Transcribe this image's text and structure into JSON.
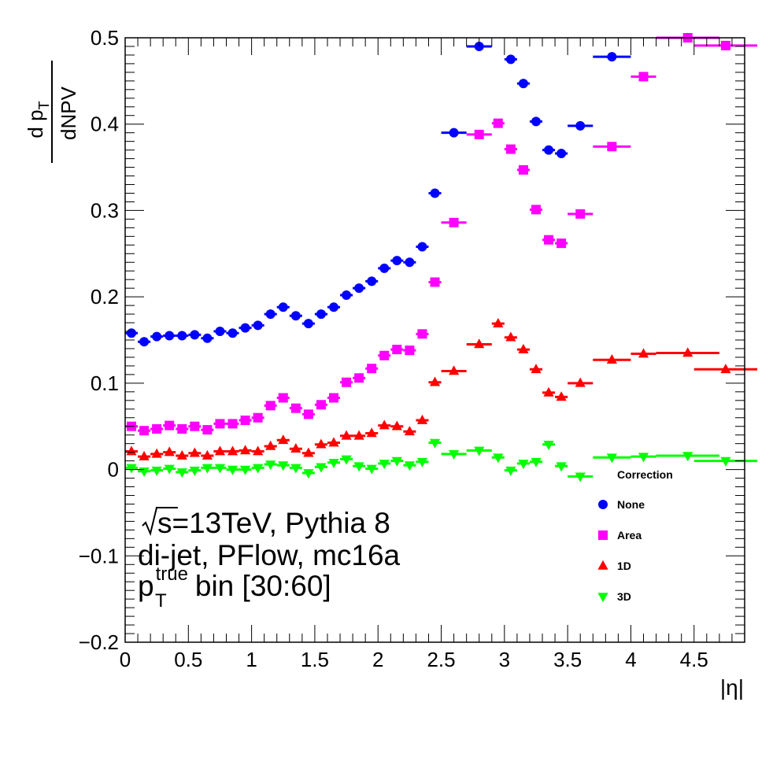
{
  "chart_data": {
    "type": "scatter",
    "xlabel": "|η|",
    "ylabel_num": "d p",
    "ylabel_num_sub": "T",
    "ylabel_den": "dNPV",
    "xlim": [
      0,
      4.9
    ],
    "ylim": [
      -0.2,
      0.5
    ],
    "xticks": [
      0,
      0.5,
      1,
      1.5,
      2,
      2.5,
      3,
      3.5,
      4,
      4.5
    ],
    "xtick_labels": [
      "0",
      "0.5",
      "1",
      "1.5",
      "2",
      "2.5",
      "3",
      "3.5",
      "4",
      "4.5"
    ],
    "yticks": [
      -0.2,
      -0.1,
      0,
      0.1,
      0.2,
      0.3,
      0.4,
      0.5
    ],
    "ytick_labels": [
      "−0.2",
      "−0.1",
      "0",
      "0.1",
      "0.2",
      "0.3",
      "0.4",
      "0.5"
    ],
    "grid": false,
    "legend": {
      "title": "Correction",
      "placement": "lower-right"
    },
    "annotations": {
      "line1_root_symbol": "√",
      "line1_rest": "s=13TeV, Pythia 8",
      "line2": "di-jet, PFlow, mc16a",
      "line3_p": "p",
      "line3_sup": "true",
      "line3_sub": "T",
      "line3_rest": " bin [30:60]"
    },
    "series": [
      {
        "name": "None",
        "color": "#0000ff",
        "marker": "circle",
        "points": [
          [
            0.05,
            0.158,
            0.05
          ],
          [
            0.15,
            0.148,
            0.05
          ],
          [
            0.25,
            0.154,
            0.05
          ],
          [
            0.35,
            0.155,
            0.05
          ],
          [
            0.45,
            0.155,
            0.05
          ],
          [
            0.55,
            0.156,
            0.05
          ],
          [
            0.65,
            0.152,
            0.05
          ],
          [
            0.75,
            0.16,
            0.05
          ],
          [
            0.85,
            0.158,
            0.05
          ],
          [
            0.95,
            0.164,
            0.05
          ],
          [
            1.05,
            0.167,
            0.05
          ],
          [
            1.15,
            0.18,
            0.05
          ],
          [
            1.25,
            0.188,
            0.05
          ],
          [
            1.35,
            0.178,
            0.05
          ],
          [
            1.45,
            0.169,
            0.05
          ],
          [
            1.55,
            0.18,
            0.05
          ],
          [
            1.65,
            0.188,
            0.05
          ],
          [
            1.75,
            0.202,
            0.05
          ],
          [
            1.85,
            0.21,
            0.05
          ],
          [
            1.95,
            0.218,
            0.05
          ],
          [
            2.05,
            0.233,
            0.05
          ],
          [
            2.15,
            0.242,
            0.05
          ],
          [
            2.25,
            0.24,
            0.05
          ],
          [
            2.35,
            0.258,
            0.05
          ],
          [
            2.45,
            0.32,
            0.05
          ],
          [
            2.6,
            0.39,
            0.1
          ],
          [
            2.8,
            0.49,
            0.1
          ],
          [
            3.05,
            0.475,
            0.05
          ],
          [
            3.15,
            0.447,
            0.05
          ],
          [
            3.25,
            0.403,
            0.05
          ],
          [
            3.35,
            0.37,
            0.05
          ],
          [
            3.45,
            0.366,
            0.05
          ],
          [
            3.6,
            0.398,
            0.1
          ],
          [
            3.85,
            0.478,
            0.15
          ]
        ]
      },
      {
        "name": "Area",
        "color": "#ff00ff",
        "marker": "square",
        "points": [
          [
            0.05,
            0.05,
            0.05
          ],
          [
            0.15,
            0.045,
            0.05
          ],
          [
            0.25,
            0.047,
            0.05
          ],
          [
            0.35,
            0.051,
            0.05
          ],
          [
            0.45,
            0.047,
            0.05
          ],
          [
            0.55,
            0.05,
            0.05
          ],
          [
            0.65,
            0.046,
            0.05
          ],
          [
            0.75,
            0.053,
            0.05
          ],
          [
            0.85,
            0.053,
            0.05
          ],
          [
            0.95,
            0.057,
            0.05
          ],
          [
            1.05,
            0.06,
            0.05
          ],
          [
            1.15,
            0.074,
            0.05
          ],
          [
            1.25,
            0.083,
            0.05
          ],
          [
            1.35,
            0.071,
            0.05
          ],
          [
            1.45,
            0.064,
            0.05
          ],
          [
            1.55,
            0.075,
            0.05
          ],
          [
            1.65,
            0.083,
            0.05
          ],
          [
            1.75,
            0.101,
            0.05
          ],
          [
            1.85,
            0.106,
            0.05
          ],
          [
            1.95,
            0.117,
            0.05
          ],
          [
            2.05,
            0.132,
            0.05
          ],
          [
            2.15,
            0.139,
            0.05
          ],
          [
            2.25,
            0.138,
            0.05
          ],
          [
            2.35,
            0.157,
            0.05
          ],
          [
            2.45,
            0.217,
            0.05
          ],
          [
            2.6,
            0.286,
            0.1
          ],
          [
            2.8,
            0.388,
            0.1
          ],
          [
            2.95,
            0.401,
            0.05
          ],
          [
            3.05,
            0.371,
            0.05
          ],
          [
            3.15,
            0.347,
            0.05
          ],
          [
            3.25,
            0.301,
            0.05
          ],
          [
            3.35,
            0.266,
            0.05
          ],
          [
            3.45,
            0.262,
            0.05
          ],
          [
            3.6,
            0.296,
            0.1
          ],
          [
            3.85,
            0.374,
            0.15
          ],
          [
            4.1,
            0.455,
            0.1
          ],
          [
            4.45,
            0.5,
            0.25
          ],
          [
            4.75,
            0.491,
            0.25
          ]
        ]
      },
      {
        "name": "1D",
        "color": "#ff0000",
        "marker": "triangle-up",
        "points": [
          [
            0.05,
            0.021,
            0.05
          ],
          [
            0.15,
            0.015,
            0.05
          ],
          [
            0.25,
            0.018,
            0.05
          ],
          [
            0.35,
            0.02,
            0.05
          ],
          [
            0.45,
            0.016,
            0.05
          ],
          [
            0.55,
            0.019,
            0.05
          ],
          [
            0.65,
            0.016,
            0.05
          ],
          [
            0.75,
            0.021,
            0.05
          ],
          [
            0.85,
            0.021,
            0.05
          ],
          [
            0.95,
            0.022,
            0.05
          ],
          [
            1.05,
            0.021,
            0.05
          ],
          [
            1.15,
            0.027,
            0.05
          ],
          [
            1.25,
            0.034,
            0.05
          ],
          [
            1.35,
            0.024,
            0.05
          ],
          [
            1.45,
            0.019,
            0.05
          ],
          [
            1.55,
            0.029,
            0.05
          ],
          [
            1.65,
            0.031,
            0.05
          ],
          [
            1.75,
            0.039,
            0.05
          ],
          [
            1.85,
            0.039,
            0.05
          ],
          [
            1.95,
            0.042,
            0.05
          ],
          [
            2.05,
            0.051,
            0.05
          ],
          [
            2.15,
            0.05,
            0.05
          ],
          [
            2.25,
            0.044,
            0.05
          ],
          [
            2.35,
            0.057,
            0.05
          ],
          [
            2.45,
            0.101,
            0.05
          ],
          [
            2.6,
            0.114,
            0.1
          ],
          [
            2.8,
            0.145,
            0.1
          ],
          [
            2.95,
            0.169,
            0.05
          ],
          [
            3.05,
            0.153,
            0.05
          ],
          [
            3.15,
            0.139,
            0.05
          ],
          [
            3.25,
            0.116,
            0.05
          ],
          [
            3.35,
            0.089,
            0.05
          ],
          [
            3.45,
            0.084,
            0.05
          ],
          [
            3.6,
            0.1,
            0.1
          ],
          [
            3.85,
            0.127,
            0.15
          ],
          [
            4.1,
            0.134,
            0.1
          ],
          [
            4.45,
            0.135,
            0.25
          ],
          [
            4.75,
            0.116,
            0.25
          ]
        ]
      },
      {
        "name": "3D",
        "color": "#00ff00",
        "marker": "triangle-down",
        "points": [
          [
            0.05,
            0.002,
            0.05
          ],
          [
            0.15,
            -0.002,
            0.05
          ],
          [
            0.25,
            -0.001,
            0.05
          ],
          [
            0.35,
            0.001,
            0.05
          ],
          [
            0.45,
            -0.003,
            0.05
          ],
          [
            0.55,
            -0.001,
            0.05
          ],
          [
            0.65,
            0.002,
            0.05
          ],
          [
            0.75,
            0.002,
            0.05
          ],
          [
            0.85,
            0.0,
            0.05
          ],
          [
            0.95,
            0.0,
            0.05
          ],
          [
            1.05,
            0.002,
            0.05
          ],
          [
            1.15,
            0.006,
            0.05
          ],
          [
            1.25,
            0.005,
            0.05
          ],
          [
            1.35,
            0.002,
            0.05
          ],
          [
            1.45,
            -0.004,
            0.05
          ],
          [
            1.55,
            0.003,
            0.05
          ],
          [
            1.65,
            0.008,
            0.05
          ],
          [
            1.75,
            0.012,
            0.05
          ],
          [
            1.85,
            0.004,
            0.05
          ],
          [
            1.95,
            0.001,
            0.05
          ],
          [
            2.05,
            0.007,
            0.05
          ],
          [
            2.15,
            0.01,
            0.05
          ],
          [
            2.25,
            0.005,
            0.05
          ],
          [
            2.35,
            0.009,
            0.05
          ],
          [
            2.45,
            0.031,
            0.05
          ],
          [
            2.6,
            0.018,
            0.1
          ],
          [
            2.8,
            0.022,
            0.1
          ],
          [
            2.95,
            0.014,
            0.05
          ],
          [
            3.05,
            -0.001,
            0.05
          ],
          [
            3.15,
            0.007,
            0.05
          ],
          [
            3.25,
            0.009,
            0.05
          ],
          [
            3.35,
            0.029,
            0.05
          ],
          [
            3.45,
            0.004,
            0.05
          ],
          [
            3.6,
            -0.008,
            0.1
          ],
          [
            3.85,
            0.014,
            0.15
          ],
          [
            4.1,
            0.015,
            0.1
          ],
          [
            4.45,
            0.016,
            0.25
          ],
          [
            4.75,
            0.01,
            0.25
          ]
        ]
      }
    ]
  }
}
